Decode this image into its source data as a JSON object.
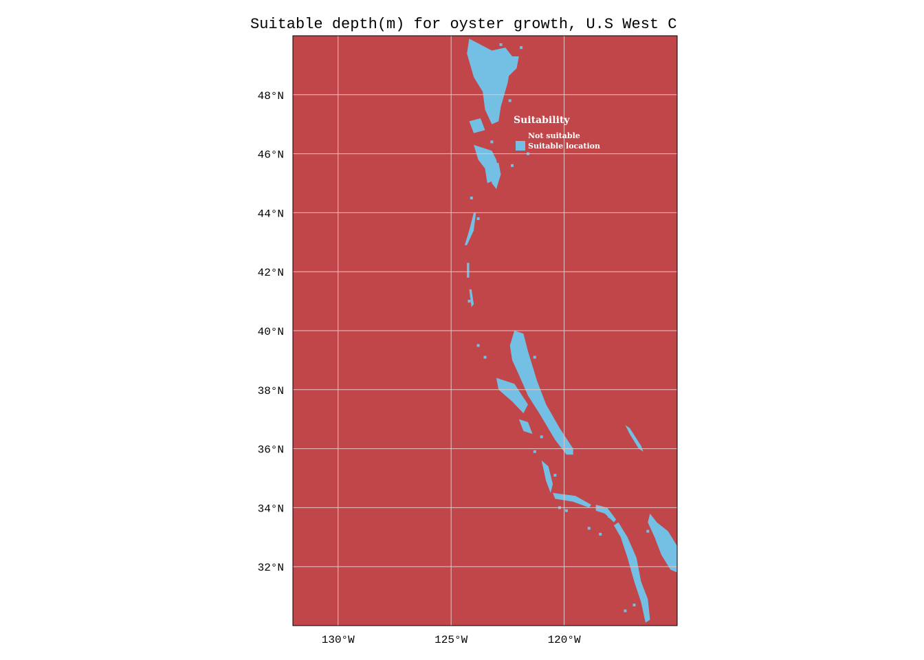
{
  "title": "Suitable depth(m) for oyster growth, U.S West C",
  "colors": {
    "not_suitable": "#c0464a",
    "suitable": "#74c0e4",
    "grid": "#e8c5c6",
    "frame": "#000000"
  },
  "map_extent": {
    "lon_min": -132,
    "lon_max": -115,
    "lat_min": 30,
    "lat_max": 50
  },
  "x_ticks": [
    {
      "value": -130,
      "label": "130°W"
    },
    {
      "value": -125,
      "label": "125°W"
    },
    {
      "value": -120,
      "label": "120°W"
    }
  ],
  "y_ticks": [
    {
      "value": 48,
      "label": "48°N"
    },
    {
      "value": 46,
      "label": "46°N"
    },
    {
      "value": 44,
      "label": "44°N"
    },
    {
      "value": 42,
      "label": "42°N"
    },
    {
      "value": 40,
      "label": "40°N"
    },
    {
      "value": 38,
      "label": "38°N"
    },
    {
      "value": 36,
      "label": "36°N"
    },
    {
      "value": 34,
      "label": "34°N"
    },
    {
      "value": 32,
      "label": "32°N"
    }
  ],
  "legend": {
    "title": "Suitability",
    "placement": "upper-right",
    "items": [
      {
        "label": "Not suitable",
        "key": "not_suitable"
      },
      {
        "label": "Suitable location",
        "key": "suitable"
      }
    ]
  },
  "suitable_regions": [
    {
      "name": "puget-sound",
      "points": [
        [
          -124.2,
          49.9
        ],
        [
          -123.2,
          49.5
        ],
        [
          -122.6,
          49.6
        ],
        [
          -122.3,
          49.3
        ],
        [
          -122.5,
          48.4
        ],
        [
          -122.8,
          47.6
        ],
        [
          -122.9,
          47.1
        ],
        [
          -123.2,
          47.0
        ],
        [
          -123.5,
          47.5
        ],
        [
          -123.6,
          48.1
        ],
        [
          -124.0,
          48.6
        ],
        [
          -124.3,
          49.4
        ]
      ]
    },
    {
      "name": "puget-inner",
      "points": [
        [
          -122.6,
          49.3
        ],
        [
          -122.0,
          49.3
        ],
        [
          -122.1,
          48.9
        ],
        [
          -122.5,
          48.6
        ],
        [
          -122.7,
          48.9
        ]
      ]
    },
    {
      "name": "grays-harbor",
      "points": [
        [
          -124.2,
          47.1
        ],
        [
          -123.7,
          47.2
        ],
        [
          -123.5,
          46.8
        ],
        [
          -124.0,
          46.7
        ]
      ]
    },
    {
      "name": "willapa-columbia",
      "points": [
        [
          -124.0,
          46.3
        ],
        [
          -123.2,
          46.1
        ],
        [
          -123.0,
          45.8
        ],
        [
          -122.9,
          45.4
        ],
        [
          -123.1,
          45.1
        ],
        [
          -123.4,
          45.0
        ],
        [
          -123.5,
          45.5
        ],
        [
          -123.8,
          45.8
        ]
      ]
    },
    {
      "name": "willamette",
      "points": [
        [
          -123.3,
          45.6
        ],
        [
          -122.9,
          45.7
        ],
        [
          -122.8,
          45.3
        ],
        [
          -123.0,
          44.8
        ],
        [
          -123.2,
          45.0
        ]
      ]
    },
    {
      "name": "oregon-coast-1",
      "points": [
        [
          -124.0,
          44.0
        ],
        [
          -123.9,
          44.0
        ],
        [
          -124.0,
          43.4
        ],
        [
          -124.3,
          42.9
        ],
        [
          -124.4,
          42.9
        ],
        [
          -124.2,
          43.4
        ]
      ]
    },
    {
      "name": "oregon-coast-2",
      "points": [
        [
          -124.3,
          42.3
        ],
        [
          -124.2,
          42.3
        ],
        [
          -124.2,
          41.8
        ],
        [
          -124.3,
          41.8
        ]
      ]
    },
    {
      "name": "california-north",
      "points": [
        [
          -124.2,
          41.4
        ],
        [
          -124.1,
          41.4
        ],
        [
          -124.0,
          40.9
        ],
        [
          -124.1,
          40.8
        ]
      ]
    },
    {
      "name": "central-valley",
      "points": [
        [
          -122.2,
          40.0
        ],
        [
          -121.8,
          39.9
        ],
        [
          -121.6,
          39.3
        ],
        [
          -121.2,
          38.3
        ],
        [
          -120.8,
          37.5
        ],
        [
          -120.2,
          36.7
        ],
        [
          -119.6,
          36.0
        ],
        [
          -119.6,
          35.8
        ],
        [
          -119.9,
          35.8
        ],
        [
          -120.4,
          36.3
        ],
        [
          -121.1,
          37.2
        ],
        [
          -121.6,
          37.8
        ],
        [
          -122.0,
          38.5
        ],
        [
          -122.3,
          39.0
        ],
        [
          -122.4,
          39.5
        ]
      ]
    },
    {
      "name": "sf-bay",
      "points": [
        [
          -123.0,
          38.4
        ],
        [
          -122.2,
          38.2
        ],
        [
          -121.6,
          37.5
        ],
        [
          -121.8,
          37.2
        ],
        [
          -122.3,
          37.6
        ],
        [
          -122.9,
          38.0
        ]
      ]
    },
    {
      "name": "monterey",
      "points": [
        [
          -122.0,
          37.0
        ],
        [
          -121.6,
          36.9
        ],
        [
          -121.4,
          36.5
        ],
        [
          -121.8,
          36.6
        ]
      ]
    },
    {
      "name": "central-coast",
      "points": [
        [
          -121.0,
          35.6
        ],
        [
          -120.7,
          35.4
        ],
        [
          -120.5,
          34.8
        ],
        [
          -120.6,
          34.5
        ],
        [
          -120.8,
          34.9
        ]
      ]
    },
    {
      "name": "santa-barbara",
      "points": [
        [
          -120.5,
          34.5
        ],
        [
          -119.5,
          34.4
        ],
        [
          -118.8,
          34.1
        ],
        [
          -118.9,
          34.0
        ],
        [
          -119.6,
          34.2
        ],
        [
          -120.4,
          34.3
        ]
      ]
    },
    {
      "name": "los-angeles",
      "points": [
        [
          -118.6,
          34.1
        ],
        [
          -118.1,
          34.0
        ],
        [
          -117.7,
          33.6
        ],
        [
          -117.8,
          33.5
        ],
        [
          -118.2,
          33.8
        ],
        [
          -118.6,
          33.9
        ]
      ]
    },
    {
      "name": "san-diego-coast",
      "points": [
        [
          -117.6,
          33.5
        ],
        [
          -117.2,
          33.0
        ],
        [
          -116.8,
          32.3
        ],
        [
          -116.6,
          31.5
        ],
        [
          -116.3,
          30.9
        ],
        [
          -116.2,
          30.2
        ],
        [
          -116.4,
          30.1
        ],
        [
          -116.6,
          30.8
        ],
        [
          -116.9,
          31.5
        ],
        [
          -117.2,
          32.3
        ],
        [
          -117.5,
          33.0
        ],
        [
          -117.8,
          33.4
        ]
      ]
    },
    {
      "name": "salton-imperial",
      "points": [
        [
          -116.2,
          33.8
        ],
        [
          -115.9,
          33.5
        ],
        [
          -115.4,
          33.2
        ],
        [
          -115.0,
          32.7
        ],
        [
          -115.0,
          31.8
        ],
        [
          -115.3,
          31.9
        ],
        [
          -115.7,
          32.4
        ],
        [
          -116.0,
          33.0
        ],
        [
          -116.3,
          33.5
        ]
      ]
    },
    {
      "name": "mojave-strip",
      "points": [
        [
          -117.3,
          36.8
        ],
        [
          -117.1,
          36.7
        ],
        [
          -116.6,
          36.1
        ],
        [
          -116.5,
          35.9
        ],
        [
          -116.7,
          36.0
        ],
        [
          -117.1,
          36.5
        ]
      ]
    }
  ],
  "suitable_spots": [
    [
      -123.6,
      48.3
    ],
    [
      -123.0,
      48.8
    ],
    [
      -122.8,
      49.7
    ],
    [
      -121.9,
      49.6
    ],
    [
      -121.6,
      46.0
    ],
    [
      -124.1,
      44.5
    ],
    [
      -123.8,
      43.8
    ],
    [
      -124.2,
      41.0
    ],
    [
      -123.8,
      39.5
    ],
    [
      -123.5,
      39.1
    ],
    [
      -121.3,
      39.1
    ],
    [
      -121.9,
      38.6
    ],
    [
      -122.5,
      37.9
    ],
    [
      -121.3,
      35.9
    ],
    [
      -120.4,
      35.1
    ],
    [
      -119.9,
      33.9
    ],
    [
      -118.9,
      33.3
    ],
    [
      -118.4,
      33.1
    ],
    [
      -117.3,
      30.5
    ],
    [
      -116.9,
      30.7
    ],
    [
      -116.3,
      33.2
    ],
    [
      -123.4,
      47.9
    ],
    [
      -122.4,
      47.8
    ],
    [
      -123.2,
      46.4
    ],
    [
      -122.3,
      45.6
    ],
    [
      -121.0,
      36.4
    ],
    [
      -120.2,
      34.0
    ],
    [
      -118.0,
      33.7
    ]
  ]
}
